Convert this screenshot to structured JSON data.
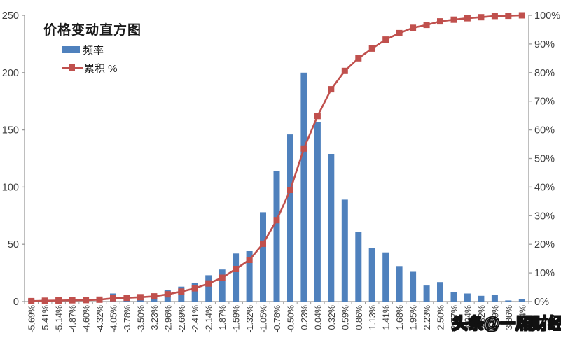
{
  "title": "价格变动直方图",
  "legend": {
    "frequency_label": "频率",
    "cumulative_label": "累积 %"
  },
  "watermark": "头条@一厢财经",
  "colors": {
    "bar": "#4F81BD",
    "line": "#C0504D",
    "axis": "#9B9B9B",
    "tick_text": "#3f3f3f",
    "background": "#ffffff"
  },
  "chart_data": {
    "type": "bar",
    "subtype": "pareto-histogram-with-cumulative-line",
    "title": "价格变动直方图",
    "xlabel": "",
    "ylabel_left": "",
    "ylabel_right": "",
    "grid": false,
    "legend_position": "top-left-inside",
    "categories": [
      "-5.69%",
      "-5.41%",
      "-5.14%",
      "-4.87%",
      "-4.60%",
      "-4.32%",
      "-4.05%",
      "-3.78%",
      "-3.50%",
      "-3.23%",
      "-2.96%",
      "-2.69%",
      "-2.41%",
      "-2.14%",
      "-1.87%",
      "-1.59%",
      "-1.32%",
      "-1.05%",
      "-0.78%",
      "-0.50%",
      "-0.23%",
      "0.04%",
      "0.32%",
      "0.59%",
      "0.86%",
      "1.13%",
      "1.41%",
      "1.68%",
      "1.95%",
      "2.23%",
      "2.50%",
      "2.77%",
      "3.04%",
      "3.32%",
      "3.59%",
      "3.86%",
      "4.14%"
    ],
    "series": [
      {
        "name": "频率",
        "type": "bar",
        "axis": "left",
        "values": [
          2,
          2,
          1,
          1,
          1,
          2,
          7,
          2,
          3,
          4,
          10,
          13,
          16,
          23,
          28,
          42,
          44,
          78,
          114,
          146,
          200,
          157,
          129,
          89,
          61,
          47,
          43,
          31,
          26,
          14,
          17,
          8,
          7,
          5,
          6,
          1,
          2
        ]
      },
      {
        "name": "累积 %",
        "type": "line-with-square-markers",
        "axis": "right",
        "values": [
          0.14,
          0.29,
          0.36,
          0.43,
          0.51,
          0.65,
          1.16,
          1.3,
          1.52,
          1.81,
          2.53,
          3.47,
          4.63,
          6.3,
          8.32,
          11.36,
          14.54,
          20.19,
          28.44,
          39.0,
          53.47,
          64.83,
          74.17,
          80.61,
          85.02,
          88.42,
          91.53,
          93.78,
          95.66,
          96.67,
          97.9,
          98.48,
          98.99,
          99.35,
          99.78,
          99.86,
          100.0
        ]
      }
    ],
    "left_axis": {
      "min": 0,
      "max": 250,
      "ticks": [
        0,
        50,
        100,
        150,
        200,
        250
      ]
    },
    "right_axis": {
      "min": 0,
      "max": 100,
      "ticks": [
        "0%",
        "10%",
        "20%",
        "30%",
        "40%",
        "50%",
        "60%",
        "70%",
        "80%",
        "90%",
        "100%"
      ]
    }
  }
}
